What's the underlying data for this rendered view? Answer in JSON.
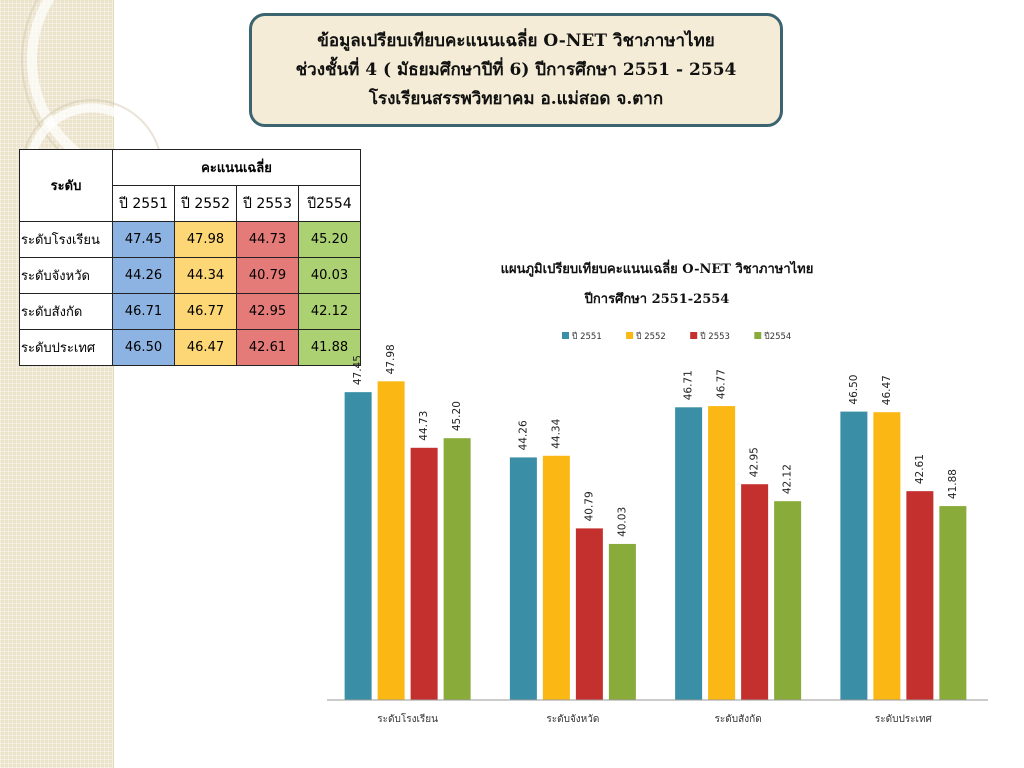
{
  "title": {
    "line1": "ข้อมูลเปรียบเทียบคะแนนเฉลี่ย O-NET วิชาภาษาไทย",
    "line2": "ช่วงชั้นที่ 4 ( มัธยมศึกษาปีที่ 6)  ปีการศึกษา 2551 - 2554",
    "line3": "โรงเรียนสรรพวิทยาคม อ.แม่สอด จ.ตาก"
  },
  "table": {
    "level_header": "ระดับ",
    "avg_header": "คะแนนเฉลี่ย",
    "years": [
      "ปี 2551",
      "ปี 2552",
      "ปี 2553",
      "ปี2554"
    ],
    "rows": [
      {
        "label": "ระดับโรงเรียน",
        "values": [
          "47.45",
          "47.98",
          "44.73",
          "45.20"
        ]
      },
      {
        "label": "ระดับจังหวัด",
        "values": [
          "44.26",
          "44.34",
          "40.79",
          "40.03"
        ]
      },
      {
        "label": "ระดับสังกัด",
        "values": [
          "46.71",
          "46.77",
          "42.95",
          "42.12"
        ]
      },
      {
        "label": "ระดับประเทศ",
        "values": [
          "46.50",
          "46.47",
          "42.61",
          "41.88"
        ]
      }
    ],
    "cell_colors": [
      "#8db3e2",
      "#fdd775",
      "#e47b78",
      "#acd172"
    ]
  },
  "chart_data": {
    "type": "bar",
    "title": "แผนภูมิเปรียบเทียบคะแนนเฉลี่ย O-NET วิชาภาษาไทย",
    "subtitle": "ปีการศึกษา 2551-2554",
    "categories": [
      "ระดับโรงเรียน",
      "ระดับจังหวัด",
      "ระดับสังกัด",
      "ระดับประเทศ"
    ],
    "series": [
      {
        "name": "ปี 2551",
        "color": "#3a8fa6",
        "values": [
          47.45,
          44.26,
          46.71,
          46.5
        ]
      },
      {
        "name": "ปี 2552",
        "color": "#fbb714",
        "values": [
          47.98,
          44.34,
          46.77,
          46.47
        ]
      },
      {
        "name": "ปี 2553",
        "color": "#c4302d",
        "values": [
          44.73,
          40.79,
          42.95,
          42.61
        ]
      },
      {
        "name": "ปี2554",
        "color": "#88ab3a",
        "values": [
          45.2,
          40.03,
          42.12,
          41.88
        ]
      }
    ],
    "data_labels": [
      [
        "47.45",
        "44.26",
        "46.71",
        "46.50"
      ],
      [
        "47.98",
        "44.34",
        "46.77",
        "46.47"
      ],
      [
        "44.73",
        "40.79",
        "42.95",
        "42.61"
      ],
      [
        "45.20",
        "40.03",
        "42.12",
        "41.88"
      ]
    ],
    "ylim": [
      32.4,
      50
    ],
    "grid": false,
    "legend_position": "top-center",
    "show_value_axis": false
  }
}
